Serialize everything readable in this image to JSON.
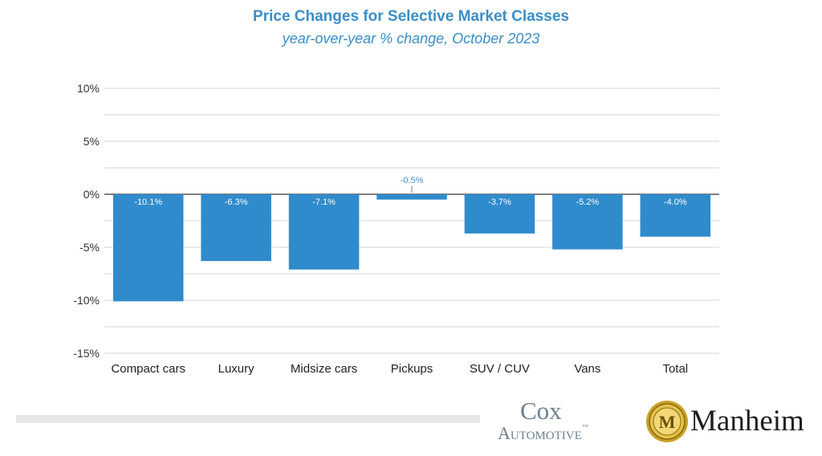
{
  "chart_data": {
    "type": "bar",
    "title": "Price Changes for Selective Market Classes",
    "subtitle": "year-over-year % change, October 2023",
    "categories": [
      "Compact cars",
      "Luxury",
      "Midsize cars",
      "Pickups",
      "SUV / CUV",
      "Vans",
      "Total"
    ],
    "values": [
      -10.1,
      -6.3,
      -7.1,
      -0.5,
      -3.7,
      -5.2,
      -4.0
    ],
    "data_labels": [
      "-10.1%",
      "-6.3%",
      "-7.1%",
      "-0.5%",
      "-3.7%",
      "-5.2%",
      "-4.0%"
    ],
    "ylim": [
      -15,
      10
    ],
    "yticks": [
      10,
      5,
      0,
      -5,
      -10,
      -15
    ],
    "ytick_labels": [
      "10%",
      "5%",
      "0%",
      "-5%",
      "-10%",
      "-15%"
    ],
    "xlabel": "",
    "ylabel": "",
    "grid": true,
    "bar_color": "#2f8bcc",
    "title_color": "#3a8ec8"
  },
  "logos": {
    "cox_top": "Cox",
    "cox_bottom": "Automotive",
    "cox_tm": "™",
    "manheim_mark": "M",
    "manheim": "Manheim"
  }
}
